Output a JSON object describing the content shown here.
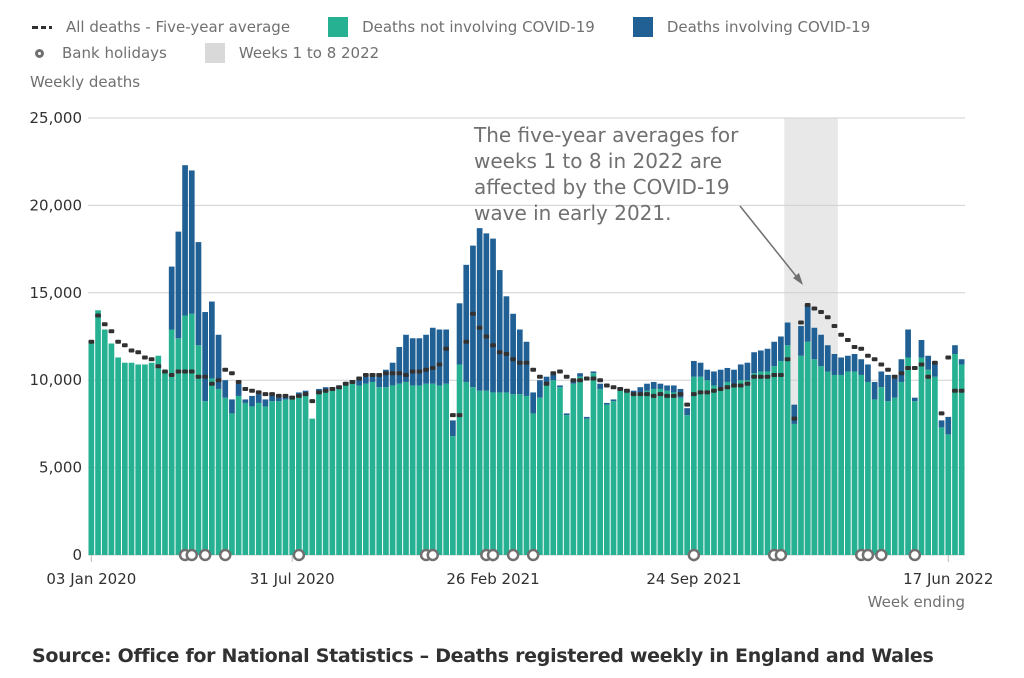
{
  "chart_data": {
    "type": "bar",
    "subtype": "stacked-bar-with-markers",
    "ylabel": "Weekly deaths",
    "xlabel": "Week ending",
    "ylim": [
      0,
      25000
    ],
    "yticks": [
      0,
      5000,
      10000,
      15000,
      20000,
      25000
    ],
    "ytick_labels": [
      "0",
      "5,000",
      "10,000",
      "15,000",
      "20,000",
      "25,000"
    ],
    "xtick_labels": [
      {
        "label": "03 Jan 2020",
        "week_index": 0
      },
      {
        "label": "31 Jul 2020",
        "week_index": 30
      },
      {
        "label": "26 Feb 2021",
        "week_index": 60
      },
      {
        "label": "24 Sep 2021",
        "week_index": 90
      },
      {
        "label": "17 Jun 2022",
        "week_index": 128
      }
    ],
    "grid": true,
    "legend_position": "top-left",
    "legend": [
      {
        "key": "average",
        "label": "All deaths - Five-year average",
        "marker": "dash"
      },
      {
        "key": "non_covid",
        "label": "Deaths not involving COVID-19",
        "marker": "square"
      },
      {
        "key": "covid",
        "label": "Deaths involving COVID-19",
        "marker": "square"
      },
      {
        "key": "bank_holidays",
        "label": "Bank holidays",
        "marker": "circle"
      },
      {
        "key": "highlight",
        "label": "Weeks 1 to 8 2022",
        "marker": "square"
      }
    ],
    "colors": {
      "non_covid": "#27b193",
      "covid": "#206095",
      "average": "#323132",
      "bank_holiday": "#707071",
      "highlight": "#e8e8e8",
      "grid": "#d0d0d0"
    },
    "first_week_ending": "03 Jan 2020",
    "last_week_ending": "17 Jun 2022",
    "series": [
      {
        "name": "Deaths not involving COVID-19",
        "key": "non_covid",
        "values": [
          12200,
          14000,
          12900,
          12100,
          11300,
          11000,
          11000,
          10900,
          10900,
          11000,
          11400,
          10500,
          12900,
          12400,
          13700,
          13800,
          12000,
          8800,
          10100,
          9500,
          9000,
          8100,
          9100,
          8700,
          8500,
          8700,
          8500,
          8800,
          8800,
          8900,
          9000,
          9200,
          9300,
          7800,
          9200,
          9400,
          9400,
          9500,
          9700,
          9800,
          9700,
          9800,
          9900,
          9600,
          9600,
          9700,
          9800,
          9900,
          9700,
          9700,
          9800,
          9800,
          9700,
          9800,
          6800,
          10900,
          9900,
          9600,
          9400,
          9400,
          9300,
          9300,
          9300,
          9200,
          9200,
          9100,
          8100,
          9000,
          9700,
          10000,
          9600,
          8000,
          9800,
          10200,
          7800,
          10400,
          9500,
          8600,
          8800,
          9400,
          9300,
          9200,
          9300,
          9400,
          9500,
          9500,
          9400,
          9300,
          9000,
          8000,
          10200,
          10200,
          10000,
          9700,
          9600,
          9900,
          9700,
          10000,
          10000,
          10400,
          10500,
          10500,
          10800,
          11100,
          12000,
          7500,
          11400,
          12200,
          11200,
          10800,
          10500,
          10300,
          10300,
          10500,
          10500,
          10300,
          9900,
          8900,
          9600,
          8800,
          9000,
          9900,
          11300,
          8800,
          11300,
          10600,
          10200,
          7300,
          6900,
          11500,
          10900
        ]
      },
      {
        "name": "Deaths involving COVID-19",
        "key": "covid",
        "values": [
          0,
          0,
          0,
          0,
          0,
          0,
          0,
          0,
          0,
          0,
          0,
          0,
          3600,
          6100,
          8600,
          8200,
          5900,
          5100,
          4400,
          3100,
          1000,
          800,
          700,
          200,
          600,
          500,
          400,
          300,
          200,
          200,
          100,
          100,
          100,
          0,
          300,
          200,
          200,
          200,
          200,
          200,
          300,
          400,
          500,
          700,
          1000,
          1300,
          2100,
          2700,
          2700,
          2700,
          2800,
          3200,
          3200,
          3100,
          900,
          3500,
          6700,
          8100,
          9300,
          9000,
          8800,
          7000,
          5500,
          4600,
          3700,
          3100,
          1200,
          1000,
          500,
          300,
          100,
          100,
          200,
          200,
          100,
          100,
          300,
          100,
          100,
          200,
          200,
          200,
          300,
          400,
          400,
          300,
          300,
          400,
          500,
          400,
          900,
          800,
          600,
          800,
          1000,
          800,
          900,
          900,
          1000,
          1200,
          1200,
          1300,
          1400,
          1400,
          1300,
          1100,
          1700,
          2100,
          1800,
          1800,
          1500,
          1200,
          1000,
          900,
          1000,
          900,
          1000,
          1000,
          900,
          1500,
          1300,
          1300,
          1600,
          200,
          1000,
          800,
          800,
          400,
          1000,
          500,
          300,
          300,
          200
        ]
      },
      {
        "name": "All deaths - Five-year average",
        "key": "average",
        "values": [
          12200,
          13700,
          13200,
          12800,
          12200,
          12000,
          11700,
          11600,
          11300,
          11200,
          10800,
          10500,
          10300,
          10500,
          10500,
          10500,
          10200,
          10200,
          9800,
          10000,
          10600,
          10400,
          9900,
          9500,
          9400,
          9300,
          9200,
          9200,
          9100,
          9100,
          9000,
          9100,
          9200,
          8800,
          9300,
          9400,
          9500,
          9600,
          9800,
          9900,
          10100,
          10300,
          10300,
          10300,
          10400,
          10400,
          10400,
          10300,
          10500,
          10500,
          10600,
          10700,
          10900,
          11800,
          8000,
          8000,
          12200,
          13800,
          13000,
          12500,
          12000,
          11600,
          11500,
          11200,
          11000,
          11000,
          10600,
          10200,
          9800,
          10400,
          10500,
          10200,
          10000,
          10000,
          10100,
          10100,
          10000,
          9700,
          9600,
          9500,
          9400,
          9200,
          9200,
          9200,
          9100,
          9200,
          9100,
          9100,
          9200,
          8600,
          9200,
          9300,
          9300,
          9400,
          9500,
          9600,
          9700,
          9700,
          9800,
          10200,
          10200,
          10200,
          10300,
          10300,
          11200,
          7800,
          13300,
          14300,
          14100,
          13900,
          13600,
          13100,
          12600,
          12300,
          11900,
          11800,
          11400,
          11200,
          10900,
          10600,
          10200,
          10400,
          10700,
          10700,
          10900,
          10200,
          11000,
          8100,
          11300,
          9400,
          9400
        ]
      },
      {
        "name": "Bank holidays",
        "key": "bank_holidays",
        "week_indices": [
          14,
          15,
          17,
          20,
          31,
          50,
          51,
          59,
          60,
          63,
          66,
          90,
          102,
          103,
          115,
          116,
          118,
          123
        ]
      }
    ],
    "annotation": {
      "text_lines": [
        "The five-year averages for",
        "weeks 1 to 8 in 2022 are",
        "affected by the COVID-19",
        "wave in early 2021."
      ],
      "points_to": "Weeks 1 to 8 2022"
    },
    "highlight_band": {
      "label": "Weeks 1 to 8 2022",
      "start_week_index": 104,
      "end_week_index": 111
    }
  },
  "source": "Source: Office for National Statistics – Deaths registered weekly in England and Wales"
}
